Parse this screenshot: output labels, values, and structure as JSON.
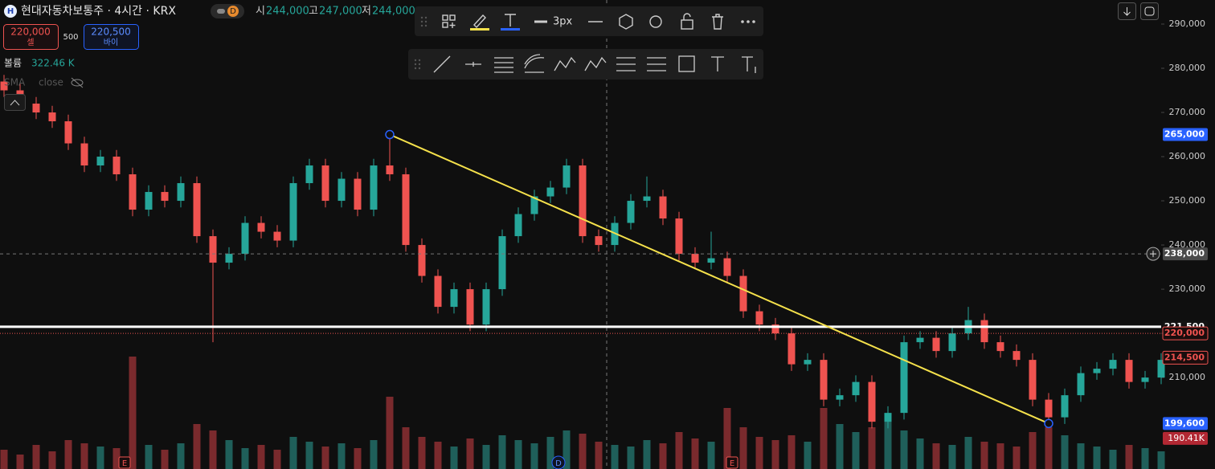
{
  "header": {
    "symbol_icon": "H",
    "title": "현대자동차보통주 · 4시간 · KRX",
    "interval_badge": "D",
    "ohlc": [
      {
        "key": "시",
        "value": "244,000"
      },
      {
        "key": "고",
        "value": "247,000"
      },
      {
        "key": "저",
        "value": "244,000"
      }
    ]
  },
  "order": {
    "sell_price": "220,000",
    "sell_label": "셀",
    "quantity": "500",
    "buy_price": "220,500",
    "buy_label": "바이"
  },
  "indicators": {
    "volume_label": "볼륨",
    "volume_value": "322.46 K",
    "sma_label": "SMA",
    "sma_source": "close"
  },
  "toolbar": {
    "width_label": "3px"
  },
  "chart_data": {
    "type": "candlestick",
    "open": [
      277000,
      275000,
      272000,
      270000,
      268000,
      263000,
      258000,
      260000,
      256000,
      248000,
      252000,
      250000,
      254000,
      242000,
      236000,
      238000,
      245000,
      243000,
      241000,
      254000,
      258000,
      250000,
      255000,
      248000,
      258000,
      256000,
      240000,
      233000,
      226000,
      230000,
      222000,
      230000,
      242000,
      247000,
      251000,
      253000,
      258000,
      242000,
      240000,
      245000,
      250000,
      251000,
      246000,
      238000,
      236000,
      237000,
      233000,
      225000,
      222000,
      220000,
      213000,
      214000,
      205000,
      206000,
      209000,
      200000,
      202000,
      218000,
      219000,
      216000,
      220000,
      223000,
      218000,
      216000,
      214000,
      205000,
      201000,
      206000,
      211000,
      212000,
      214000,
      209000,
      210000
    ],
    "high": [
      278500,
      276500,
      273500,
      271500,
      269500,
      264500,
      261500,
      261500,
      257500,
      253500,
      253500,
      255500,
      255500,
      243500,
      239500,
      246500,
      246500,
      244500,
      255500,
      259500,
      259500,
      256500,
      256500,
      259500,
      266000,
      257500,
      241500,
      234500,
      231500,
      231500,
      231500,
      243500,
      248500,
      252500,
      254500,
      259500,
      259500,
      243500,
      246500,
      251500,
      255500,
      252500,
      247500,
      239500,
      243000,
      238500,
      234500,
      226500,
      223500,
      221500,
      215500,
      215500,
      207500,
      210500,
      210500,
      203500,
      219500,
      220500,
      220500,
      221500,
      226000,
      224500,
      219500,
      217500,
      215500,
      206500,
      207500,
      212500,
      213500,
      215500,
      215500,
      211500,
      215500
    ],
    "low": [
      273500,
      270500,
      268500,
      266500,
      261500,
      256500,
      256500,
      254500,
      246500,
      246500,
      248500,
      248500,
      240500,
      218000,
      234500,
      236500,
      241500,
      239500,
      239500,
      252500,
      248500,
      248500,
      246500,
      246500,
      254500,
      238500,
      231500,
      224500,
      224500,
      220500,
      220500,
      228500,
      240500,
      245500,
      249500,
      251500,
      240500,
      238500,
      238500,
      243500,
      248500,
      244500,
      236500,
      234500,
      234500,
      231500,
      223500,
      220500,
      218500,
      211500,
      211500,
      203500,
      203500,
      204500,
      198500,
      198500,
      200500,
      216500,
      214500,
      214500,
      218500,
      216500,
      214500,
      212500,
      203500,
      199600,
      199500,
      204500,
      209500,
      210500,
      207500,
      207500,
      208500
    ],
    "close": [
      275000,
      272000,
      270000,
      268000,
      263000,
      258000,
      260000,
      256000,
      248000,
      252000,
      250000,
      254000,
      242000,
      236000,
      238000,
      245000,
      243000,
      241000,
      254000,
      258000,
      250000,
      255000,
      248000,
      258000,
      256000,
      240000,
      233000,
      226000,
      230000,
      222000,
      230000,
      242000,
      247000,
      251000,
      253000,
      258000,
      242000,
      240000,
      245000,
      250000,
      251000,
      246000,
      238000,
      236000,
      237000,
      233000,
      225000,
      222000,
      220000,
      213000,
      214000,
      205000,
      206000,
      209000,
      200000,
      202000,
      218000,
      219000,
      216000,
      220000,
      223000,
      218000,
      216000,
      214000,
      205000,
      201000,
      206000,
      211000,
      212000,
      214000,
      209000,
      210000,
      214000
    ],
    "volume": [
      120,
      90,
      150,
      110,
      180,
      160,
      140,
      130,
      700,
      150,
      120,
      160,
      280,
      240,
      180,
      130,
      150,
      120,
      200,
      170,
      140,
      160,
      130,
      180,
      450,
      260,
      200,
      170,
      140,
      190,
      150,
      210,
      180,
      160,
      200,
      240,
      220,
      170,
      150,
      140,
      180,
      160,
      230,
      190,
      170,
      380,
      260,
      200,
      180,
      210,
      170,
      380,
      280,
      230,
      260,
      300,
      240,
      190,
      160,
      150,
      200,
      170,
      160,
      140,
      230,
      260,
      210,
      160,
      140,
      120,
      150,
      130,
      110
    ],
    "up_color": "#26a69a",
    "down_color": "#ef5350",
    "volume_up_color": "#1f5f5a",
    "volume_down_color": "#7a2a2d",
    "ylim": [
      189300,
      295450
    ],
    "yticks": [
      {
        "value": 210000,
        "label": "210,000"
      },
      {
        "value": 220000,
        "label": "220,000"
      },
      {
        "value": 230000,
        "label": "230,000"
      },
      {
        "value": 240000,
        "label": "240,000"
      },
      {
        "value": 250000,
        "label": "250,000"
      },
      {
        "value": 260000,
        "label": "260,000"
      },
      {
        "value": 270000,
        "label": "270,000"
      },
      {
        "value": 280000,
        "label": "280,000"
      },
      {
        "value": 290000,
        "label": "290,000"
      }
    ],
    "volume_ylim": [
      0,
      1000
    ],
    "trendline": {
      "color": "#f5e14b",
      "start": {
        "index": 24,
        "price": 265000
      },
      "end": {
        "index": 65,
        "price": 199600
      }
    },
    "hline": {
      "price": 221500,
      "color": "#ffffff"
    },
    "crosshair": {
      "index": 37.5,
      "price": 238000
    },
    "price_labels": [
      {
        "value": 265000,
        "label": "265,000",
        "bg": "#2962ff",
        "fg": "#ffffff"
      },
      {
        "value": 238000,
        "label": "238,000",
        "bg": "#4a4a4a",
        "fg": "#ffffff"
      },
      {
        "value": 221500,
        "label": "221,500",
        "bg": "#131313",
        "fg": "#ffffff"
      },
      {
        "value": 220000,
        "label": "220,000",
        "bg": "#1a0d0d",
        "fg": "#ef5350"
      },
      {
        "value": 214500,
        "label": "214,500",
        "bg": "#1a0d0d",
        "fg": "#ef5350"
      },
      {
        "value": 199600,
        "label": "199,600",
        "bg": "#2962ff",
        "fg": "#ffffff"
      }
    ],
    "volume_label": {
      "value": 190.41,
      "label": "190.41K",
      "bg": "#b22833"
    },
    "events": [
      {
        "index": 7.5,
        "label": "E"
      },
      {
        "index": 34.5,
        "label": "D"
      },
      {
        "index": 45.3,
        "label": "E"
      }
    ]
  }
}
